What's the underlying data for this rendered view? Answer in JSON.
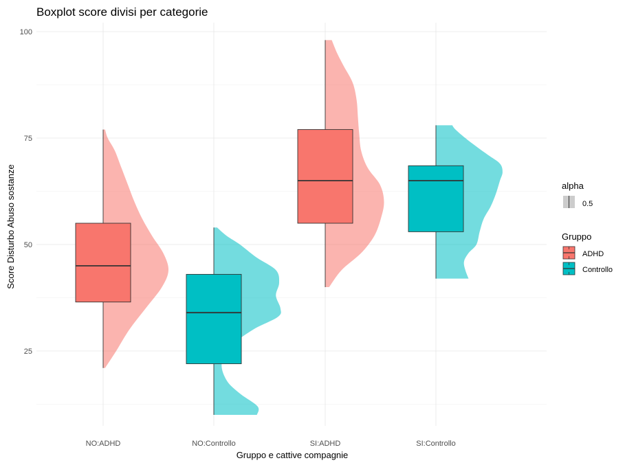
{
  "chart_data": {
    "type": "boxplot",
    "title": "Boxplot score divisi per categorie",
    "xlabel": "Gruppo e cattive compagnie",
    "ylabel": "Score Disturbo Abuso sostanze",
    "ylim": [
      8,
      104
    ],
    "yticks": [
      25,
      50,
      75,
      100
    ],
    "grid": true,
    "legend_position": "right",
    "legends": [
      {
        "title": "alpha",
        "entries": [
          "0.5"
        ]
      },
      {
        "title": "Gruppo",
        "entries": [
          "ADHD",
          "Controllo"
        ]
      }
    ],
    "colors": {
      "ADHD": "#F8766D",
      "Controllo": "#00BFC4"
    },
    "categories": [
      "NO:ADHD",
      "NO:Controllo",
      "SI:ADHD",
      "SI:Controllo"
    ],
    "series": [
      {
        "category": "NO:ADHD",
        "group": "ADHD",
        "min": 21,
        "q1": 36.5,
        "median": 45,
        "q3": 55,
        "max": 77,
        "density": [
          [
            21,
            0.03
          ],
          [
            25,
            0.2
          ],
          [
            30,
            0.4
          ],
          [
            35,
            0.65
          ],
          [
            40,
            0.9
          ],
          [
            44,
            1.0
          ],
          [
            48,
            0.92
          ],
          [
            52,
            0.75
          ],
          [
            56,
            0.6
          ],
          [
            60,
            0.48
          ],
          [
            64,
            0.38
          ],
          [
            68,
            0.28
          ],
          [
            72,
            0.18
          ],
          [
            75,
            0.07
          ],
          [
            77,
            0.03
          ]
        ]
      },
      {
        "category": "NO:Controllo",
        "group": "Controllo",
        "min": 10,
        "q1": 22,
        "median": 34,
        "q3": 43,
        "max": 54,
        "density": [
          [
            10,
            0.66
          ],
          [
            12,
            0.67
          ],
          [
            15,
            0.4
          ],
          [
            18,
            0.2
          ],
          [
            22,
            0.12
          ],
          [
            26,
            0.25
          ],
          [
            30,
            0.6
          ],
          [
            33,
            0.98
          ],
          [
            35,
            1.02
          ],
          [
            38,
            0.95
          ],
          [
            41,
            1.0
          ],
          [
            44,
            0.95
          ],
          [
            47,
            0.65
          ],
          [
            50,
            0.4
          ],
          [
            52,
            0.2
          ],
          [
            54,
            0.05
          ]
        ]
      },
      {
        "category": "SI:ADHD",
        "group": "ADHD",
        "min": 40,
        "q1": 55,
        "median": 65,
        "q3": 77,
        "max": 98,
        "density": [
          [
            40,
            0.06
          ],
          [
            44,
            0.25
          ],
          [
            48,
            0.55
          ],
          [
            52,
            0.75
          ],
          [
            56,
            0.85
          ],
          [
            60,
            0.9
          ],
          [
            64,
            0.84
          ],
          [
            68,
            0.65
          ],
          [
            72,
            0.55
          ],
          [
            76,
            0.52
          ],
          [
            80,
            0.5
          ],
          [
            84,
            0.48
          ],
          [
            88,
            0.42
          ],
          [
            92,
            0.28
          ],
          [
            95,
            0.18
          ],
          [
            98,
            0.1
          ]
        ]
      },
      {
        "category": "SI:Controllo",
        "group": "Controllo",
        "min": 42,
        "q1": 53,
        "median": 65,
        "q3": 68.5,
        "max": 78,
        "density": [
          [
            42,
            0.5
          ],
          [
            44,
            0.45
          ],
          [
            46,
            0.43
          ],
          [
            48,
            0.5
          ],
          [
            50,
            0.62
          ],
          [
            53,
            0.67
          ],
          [
            56,
            0.73
          ],
          [
            59,
            0.84
          ],
          [
            62,
            0.92
          ],
          [
            65,
            0.98
          ],
          [
            67,
            1.02
          ],
          [
            69,
            0.98
          ],
          [
            71,
            0.8
          ],
          [
            73,
            0.62
          ],
          [
            75,
            0.45
          ],
          [
            77,
            0.3
          ],
          [
            78,
            0.25
          ]
        ]
      }
    ]
  }
}
